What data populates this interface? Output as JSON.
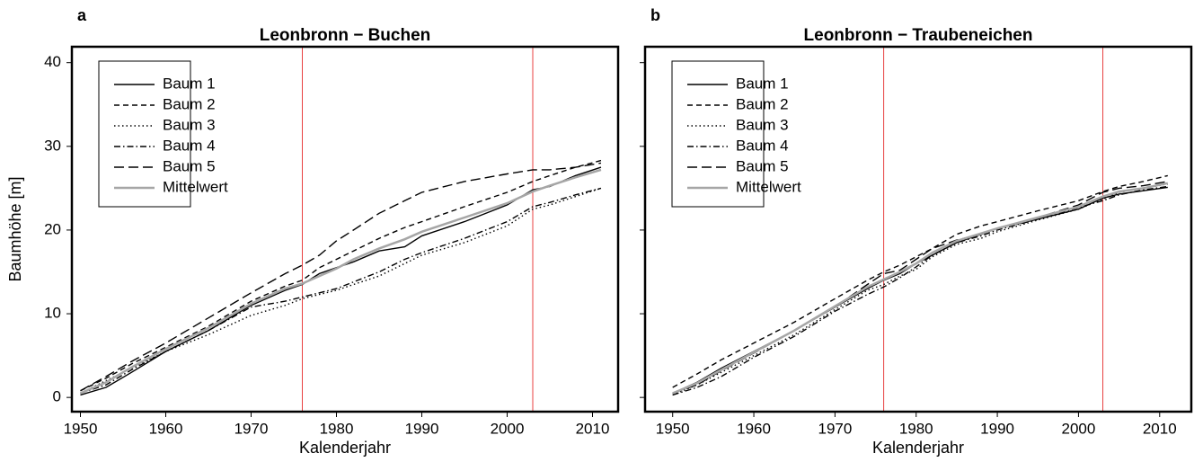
{
  "chart_data": [
    {
      "type": "line",
      "panel_label": "a",
      "title": "Leonbronn − Buchen",
      "x_label": "Kalenderjahr",
      "y_label": "Baumhöhe [m]",
      "x": [
        1950,
        1953,
        1956,
        1960,
        1965,
        1970,
        1974,
        1976,
        1978,
        1980,
        1982,
        1985,
        1988,
        1990,
        1995,
        2000,
        2003,
        2005,
        2008,
        2011
      ],
      "series": [
        {
          "name": "Baum 1",
          "color": "#000000",
          "linestyle": "solid",
          "values": [
            0.3,
            1.2,
            3,
            5.5,
            8,
            11,
            12.8,
            13.5,
            14.8,
            15.5,
            16.2,
            17.5,
            18,
            19.3,
            21,
            23,
            24.8,
            25.2,
            26.5,
            27.5
          ]
        },
        {
          "name": "Baum 2",
          "color": "#000000",
          "linestyle": "dashed",
          "values": [
            0.8,
            2.3,
            4,
            6,
            8.5,
            11.5,
            13.3,
            14,
            15.5,
            16.5,
            17.5,
            19,
            20.3,
            21,
            22.8,
            24.5,
            25.8,
            26.5,
            27.5,
            28.3
          ]
        },
        {
          "name": "Baum 3",
          "color": "#000000",
          "linestyle": "dotted",
          "values": [
            0.5,
            2,
            3.5,
            5.5,
            7.5,
            9.8,
            11,
            11.8,
            12.3,
            12.8,
            13.5,
            14.5,
            16,
            17,
            18.5,
            20.5,
            22.5,
            23,
            24,
            25
          ]
        },
        {
          "name": "Baum 4",
          "color": "#000000",
          "linestyle": "dashdot",
          "values": [
            0.5,
            1.5,
            3.3,
            5.5,
            8,
            10.8,
            11.5,
            12,
            12.5,
            13,
            13.8,
            15,
            16.5,
            17.3,
            19,
            21,
            22.8,
            23.3,
            24.2,
            25
          ]
        },
        {
          "name": "Baum 5",
          "color": "#000000",
          "linestyle": "longdash",
          "values": [
            0.8,
            2.5,
            4.3,
            6.5,
            9.5,
            12.5,
            14.8,
            15.8,
            17,
            18.7,
            20,
            22,
            23.5,
            24.5,
            25.8,
            26.7,
            27.2,
            27.2,
            27.5,
            28
          ]
        },
        {
          "name": "Mittelwert",
          "color": "#a6a6a6",
          "linestyle": "solid",
          "values": [
            0.5,
            1.8,
            3.6,
            5.8,
            8.3,
            11.2,
            13,
            13.6,
            14.5,
            15.4,
            16.5,
            17.8,
            18.9,
            19.8,
            21.5,
            23.2,
            24.6,
            25.3,
            26.3,
            27.2
          ]
        }
      ],
      "xlim": [
        1949,
        2013
      ],
      "ylim": [
        -1.7,
        41.9
      ],
      "xticks": [
        1950,
        1960,
        1970,
        1980,
        1990,
        2000,
        2010
      ],
      "yticks": [
        0,
        10,
        20,
        30,
        40
      ],
      "vlines": [
        1976,
        2003
      ],
      "vline_color": "#e84040",
      "legend": "upper left"
    },
    {
      "type": "line",
      "panel_label": "b",
      "title": "Leonbronn − Traubeneichen",
      "x_label": "Kalenderjahr",
      "x": [
        1950,
        1953,
        1956,
        1960,
        1965,
        1970,
        1974,
        1976,
        1978,
        1980,
        1982,
        1985,
        1988,
        1990,
        1995,
        2000,
        2003,
        2005,
        2008,
        2011
      ],
      "series": [
        {
          "name": "Baum 1",
          "color": "#000000",
          "linestyle": "solid",
          "values": [
            0.5,
            1.8,
            3.5,
            5.5,
            8,
            10.8,
            13,
            14,
            14.8,
            16,
            17,
            18.5,
            19.5,
            20.2,
            21.3,
            22.5,
            23.8,
            24.3,
            24.7,
            25.1
          ]
        },
        {
          "name": "Baum 2",
          "color": "#000000",
          "linestyle": "dashed",
          "values": [
            1.2,
            2.8,
            4.5,
            6.5,
            9,
            11.8,
            14,
            15,
            15.8,
            16.8,
            17.8,
            19.5,
            20.5,
            21,
            22.3,
            23.5,
            24.6,
            25.2,
            25.8,
            26.5
          ]
        },
        {
          "name": "Baum 3",
          "color": "#000000",
          "linestyle": "dotted",
          "values": [
            0.3,
            1.5,
            3,
            5,
            7.5,
            10.5,
            12.8,
            13.5,
            14.5,
            15.3,
            16.8,
            18.3,
            19,
            19.8,
            21.2,
            22.5,
            23.7,
            24.5,
            25,
            25.5
          ]
        },
        {
          "name": "Baum 4",
          "color": "#000000",
          "linestyle": "dashdot",
          "values": [
            0.3,
            1.2,
            2.5,
            4.8,
            7.3,
            10.3,
            12.3,
            13.2,
            14.3,
            15.6,
            17,
            18.5,
            19.3,
            20,
            21.3,
            22.7,
            23.5,
            24.2,
            24.8,
            25.2
          ]
        },
        {
          "name": "Baum 5",
          "color": "#000000",
          "linestyle": "longdash",
          "values": [
            0.5,
            1.5,
            3.2,
            5.3,
            8,
            10.8,
            13.5,
            14.8,
            15.2,
            16.5,
            17.8,
            18.8,
            19.5,
            20.2,
            21.5,
            23,
            24.5,
            25,
            25.3,
            25.8
          ]
        },
        {
          "name": "Mittelwert",
          "color": "#a6a6a6",
          "linestyle": "solid",
          "values": [
            0.5,
            1.7,
            3.3,
            5.4,
            8,
            10.9,
            13.2,
            14.1,
            15,
            16,
            17.3,
            18.7,
            19.6,
            20.2,
            21.5,
            22.8,
            24,
            24.6,
            25,
            25.6
          ]
        }
      ],
      "xlim": [
        1946.6,
        2013.9
      ],
      "ylim": [
        -1.7,
        41.9
      ],
      "xticks": [
        1950,
        1960,
        1970,
        1980,
        1990,
        2000,
        2010
      ],
      "yticks": [
        0,
        10,
        20,
        30,
        40
      ],
      "vlines": [
        1976,
        2003
      ],
      "vline_color": "#e84040",
      "legend": "upper left"
    }
  ]
}
